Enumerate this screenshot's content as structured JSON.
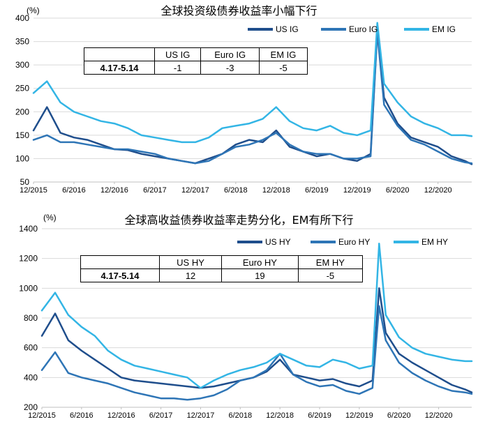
{
  "chart_data": [
    {
      "type": "line",
      "title": "全球投资级债券收益率小幅下行",
      "unit_label": "(%)",
      "ylim": [
        50,
        400
      ],
      "yticks": [
        50,
        100,
        150,
        200,
        250,
        300,
        350,
        400
      ],
      "xlim": [
        "2015-12",
        "2021-05"
      ],
      "xticks": [
        "12/2015",
        "6/2016",
        "12/2016",
        "6/2017",
        "12/2017",
        "6/2018",
        "12/2018",
        "6/2019",
        "12/2019",
        "6/2020",
        "12/2020"
      ],
      "legend_position": "top-right",
      "grid": true,
      "x": [
        "2015-12",
        "2016-02",
        "2016-04",
        "2016-06",
        "2016-08",
        "2016-10",
        "2016-12",
        "2017-02",
        "2017-04",
        "2017-06",
        "2017-08",
        "2017-10",
        "2017-12",
        "2018-02",
        "2018-04",
        "2018-06",
        "2018-08",
        "2018-10",
        "2018-12",
        "2019-02",
        "2019-04",
        "2019-06",
        "2019-08",
        "2019-10",
        "2019-12",
        "2020-02",
        "2020-03",
        "2020-04",
        "2020-06",
        "2020-08",
        "2020-10",
        "2020-12",
        "2021-02",
        "2021-04",
        "2021-05"
      ],
      "series": [
        {
          "name": "US IG",
          "color": "#1f4e8c",
          "values": [
            160,
            210,
            155,
            145,
            140,
            130,
            120,
            118,
            110,
            105,
            100,
            95,
            90,
            100,
            110,
            130,
            140,
            135,
            160,
            125,
            115,
            105,
            110,
            100,
            95,
            110,
            375,
            230,
            175,
            145,
            135,
            125,
            105,
            95,
            88
          ]
        },
        {
          "name": "Euro IG",
          "color": "#2e75b6",
          "values": [
            140,
            150,
            135,
            135,
            130,
            125,
            120,
            120,
            115,
            110,
            100,
            95,
            90,
            95,
            110,
            125,
            130,
            140,
            155,
            130,
            115,
            110,
            110,
            100,
            100,
            105,
            370,
            215,
            170,
            140,
            130,
            115,
            100,
            92,
            90
          ]
        },
        {
          "name": "EM IG",
          "color": "#33b5e5",
          "values": [
            240,
            265,
            220,
            200,
            190,
            180,
            175,
            165,
            150,
            145,
            140,
            135,
            135,
            145,
            165,
            170,
            175,
            185,
            210,
            180,
            165,
            160,
            170,
            155,
            150,
            160,
            390,
            260,
            220,
            190,
            175,
            165,
            150,
            150,
            148
          ]
        }
      ],
      "table": {
        "period": "4.17-5.14",
        "headers": [
          "US IG",
          "Euro IG",
          "EM IG"
        ],
        "values": [
          "-1",
          "-3",
          "-5"
        ]
      }
    },
    {
      "type": "line",
      "title": "全球高收益债券收益率走势分化，EM有所下行",
      "unit_label": "(%)",
      "ylim": [
        200,
        1400
      ],
      "yticks": [
        200,
        400,
        600,
        800,
        1000,
        1200,
        1400
      ],
      "xlim": [
        "2015-12",
        "2021-05"
      ],
      "xticks": [
        "12/2015",
        "6/2016",
        "12/2016",
        "6/2017",
        "12/2017",
        "6/2018",
        "12/2018",
        "6/2019",
        "12/2019",
        "6/2020",
        "12/2020"
      ],
      "legend_position": "top-right",
      "grid": true,
      "x": [
        "2015-12",
        "2016-02",
        "2016-04",
        "2016-06",
        "2016-08",
        "2016-10",
        "2016-12",
        "2017-02",
        "2017-04",
        "2017-06",
        "2017-08",
        "2017-10",
        "2017-12",
        "2018-02",
        "2018-04",
        "2018-06",
        "2018-08",
        "2018-10",
        "2018-12",
        "2019-02",
        "2019-04",
        "2019-06",
        "2019-08",
        "2019-10",
        "2019-12",
        "2020-02",
        "2020-03",
        "2020-04",
        "2020-06",
        "2020-08",
        "2020-10",
        "2020-12",
        "2021-02",
        "2021-04",
        "2021-05"
      ],
      "series": [
        {
          "name": "US HY",
          "color": "#1f4e8c",
          "values": [
            680,
            830,
            650,
            580,
            520,
            460,
            400,
            380,
            370,
            360,
            350,
            340,
            330,
            340,
            360,
            380,
            400,
            440,
            520,
            420,
            400,
            380,
            390,
            360,
            340,
            380,
            1000,
            700,
            560,
            500,
            450,
            400,
            350,
            320,
            300
          ]
        },
        {
          "name": "Euro HY",
          "color": "#2e75b6",
          "values": [
            450,
            570,
            430,
            400,
            380,
            360,
            330,
            300,
            280,
            260,
            260,
            250,
            260,
            280,
            320,
            380,
            400,
            450,
            560,
            420,
            370,
            340,
            350,
            310,
            290,
            330,
            880,
            650,
            500,
            430,
            380,
            340,
            310,
            300,
            290
          ]
        },
        {
          "name": "EM HY",
          "color": "#33b5e5",
          "values": [
            850,
            970,
            820,
            740,
            680,
            580,
            520,
            480,
            460,
            440,
            420,
            400,
            330,
            380,
            420,
            450,
            470,
            500,
            560,
            520,
            480,
            470,
            520,
            500,
            460,
            480,
            1300,
            820,
            670,
            600,
            560,
            540,
            520,
            510,
            510
          ]
        }
      ],
      "table": {
        "period": "4.17-5.14",
        "headers": [
          "US HY",
          "Euro HY",
          "EM HY"
        ],
        "values": [
          "12",
          "19",
          "-5"
        ]
      }
    }
  ]
}
